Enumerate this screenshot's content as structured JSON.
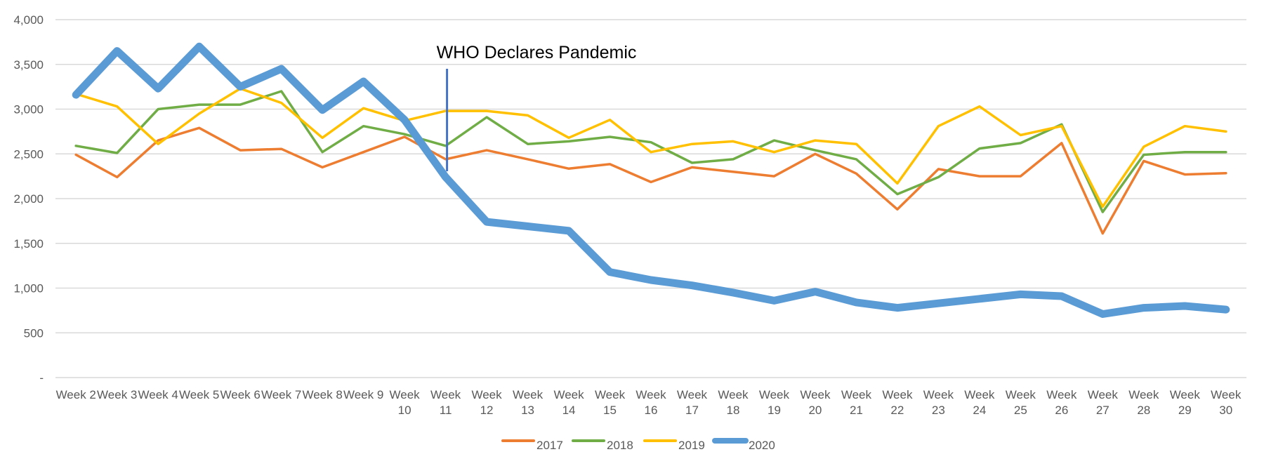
{
  "chart_data": {
    "type": "line",
    "title": "",
    "xlabel": "",
    "ylabel": "",
    "categories": [
      "Week 2",
      "Week 3",
      "Week 4",
      "Week 5",
      "Week 6",
      "Week 7",
      "Week 8",
      "Week 9",
      "Week 10",
      "Week 11",
      "Week 12",
      "Week 13",
      "Week 14",
      "Week 15",
      "Week 16",
      "Week 17",
      "Week 18",
      "Week 19",
      "Week 20",
      "Week 21",
      "Week 22",
      "Week 23",
      "Week 24",
      "Week 25",
      "Week 26",
      "Week 27",
      "Week 28",
      "Week 29",
      "Week 30"
    ],
    "ylim": [
      0,
      4000
    ],
    "yticks": [
      0,
      500,
      1000,
      1500,
      2000,
      2500,
      3000,
      3500,
      4000
    ],
    "ytick_labels": [
      "-",
      "500",
      "1,000",
      "1,500",
      "2,000",
      "2,500",
      "3,000",
      "3,500",
      "4,000"
    ],
    "grid": true,
    "legend_position": "bottom",
    "series": [
      {
        "name": "2017",
        "color": "#ED7D31",
        "values": [
          2490,
          2240,
          2650,
          2790,
          2540,
          2555,
          2350,
          2520,
          2690,
          2440,
          2540,
          2440,
          2335,
          2385,
          2185,
          2350,
          2300,
          2250,
          2500,
          2280,
          1880,
          2330,
          2250,
          2250,
          2620,
          1610,
          2420,
          2270,
          2285
        ]
      },
      {
        "name": "2018",
        "color": "#70AD47",
        "values": [
          2590,
          2510,
          3000,
          3050,
          3050,
          3200,
          2520,
          2810,
          2720,
          2590,
          2910,
          2610,
          2640,
          2690,
          2630,
          2400,
          2440,
          2650,
          2540,
          2440,
          2050,
          2240,
          2560,
          2620,
          2830,
          1850,
          2490,
          2520,
          2520
        ]
      },
      {
        "name": "2019",
        "color": "#FFC000",
        "values": [
          3170,
          3030,
          2610,
          2950,
          3230,
          3070,
          2680,
          3010,
          2870,
          2980,
          2980,
          2930,
          2680,
          2880,
          2520,
          2610,
          2640,
          2520,
          2650,
          2610,
          2170,
          2810,
          3030,
          2710,
          2810,
          1910,
          2580,
          2810,
          2750
        ]
      },
      {
        "name": "2020",
        "color": "#5B9BD5",
        "values": [
          3160,
          3650,
          3230,
          3700,
          3250,
          3450,
          2990,
          3310,
          2880,
          2240,
          1740,
          1690,
          1640,
          1180,
          1090,
          1030,
          950,
          860,
          960,
          840,
          780,
          830,
          880,
          930,
          910,
          710,
          780,
          800,
          760
        ]
      }
    ],
    "annotations": [
      {
        "text": "WHO Declares Pandemic",
        "category": "Week 11",
        "color": "#4472C4"
      }
    ]
  }
}
